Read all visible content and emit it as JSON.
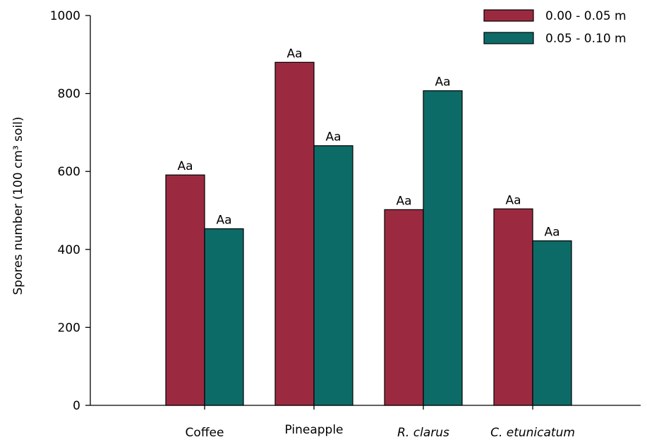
{
  "chart_data": {
    "type": "bar",
    "title": "",
    "xlabel": "",
    "ylabel": "Spores number (100 cm³ soil)",
    "ylim": [
      0,
      1000
    ],
    "yticks": [
      0,
      200,
      400,
      600,
      800,
      1000
    ],
    "categories": [
      "Coffee",
      "Pineapple",
      "R. clarus",
      "C. etunicatum"
    ],
    "italic_categories": [
      false,
      false,
      true,
      true
    ],
    "series": [
      {
        "name": "0.00 - 0.05 m",
        "color": "#9b2a41",
        "values": [
          591,
          880,
          502,
          504
        ],
        "labels": [
          "Aa",
          "Aa",
          "Aa",
          "Aa"
        ]
      },
      {
        "name": "0.05 - 0.10 m",
        "color": "#0d6b67",
        "values": [
          453,
          666,
          807,
          422
        ],
        "labels": [
          "Aa",
          "Aa",
          "Aa",
          "Aa"
        ]
      }
    ],
    "legend_position": "top-right",
    "grid": false
  }
}
